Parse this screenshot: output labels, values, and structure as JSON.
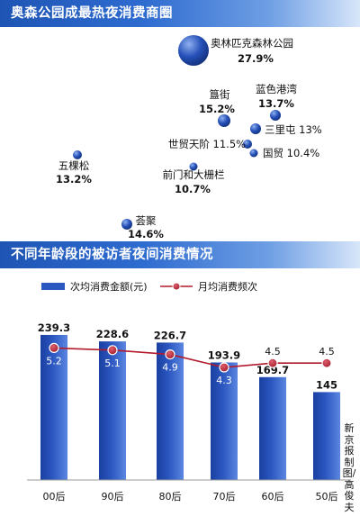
{
  "sections": {
    "top_title": "奥森公园成最热夜消费商圈",
    "bottom_title": "不同年龄段的被访者夜间消费情况"
  },
  "credit": "新京报制图/高俊夫",
  "chart_data": [
    {
      "type": "scatter",
      "subtype": "bubble",
      "title": "奥森公园成最热夜消费商圈",
      "points": [
        {
          "name": "奥林匹克森林公园",
          "value": 27.9,
          "label": "27.9%"
        },
        {
          "name": "蓝色港湾",
          "value": 13.7,
          "label": "13.7%"
        },
        {
          "name": "簋街",
          "value": 15.2,
          "label": "15.2%"
        },
        {
          "name": "三里屯",
          "value": 13,
          "label": "13%"
        },
        {
          "name": "世贸天阶",
          "value": 11.5,
          "label": "11.5%"
        },
        {
          "name": "国贸",
          "value": 10.4,
          "label": "10.4%"
        },
        {
          "name": "五棵松",
          "value": 13.2,
          "label": "13.2%"
        },
        {
          "name": "前门和大栅栏",
          "value": 10.7,
          "label": "10.7%"
        },
        {
          "name": "荟聚",
          "value": 14.6,
          "label": "14.6%"
        }
      ],
      "colors": {
        "bubble": "#2550b8",
        "bubble_highlight": "#8fb0f0"
      }
    },
    {
      "type": "bar",
      "title": "不同年龄段的被访者夜间消费情况",
      "categories": [
        "00后",
        "90后",
        "80后",
        "70后",
        "60后",
        "50后"
      ],
      "series": [
        {
          "name": "次均消费金额",
          "unit": "元",
          "type": "bar",
          "values": [
            239.3,
            228.6,
            226.7,
            193.9,
            169.7,
            145
          ]
        },
        {
          "name": "月均消费频次",
          "type": "line",
          "values": [
            5.2,
            5.1,
            4.9,
            4.3,
            4.5,
            4.5
          ]
        }
      ],
      "ylim": [
        0,
        260
      ],
      "grid": false,
      "legend": "top-left",
      "colors": {
        "bar": "#2b57c0",
        "line": "#b31b2c",
        "marker": "#a0182a"
      }
    }
  ]
}
